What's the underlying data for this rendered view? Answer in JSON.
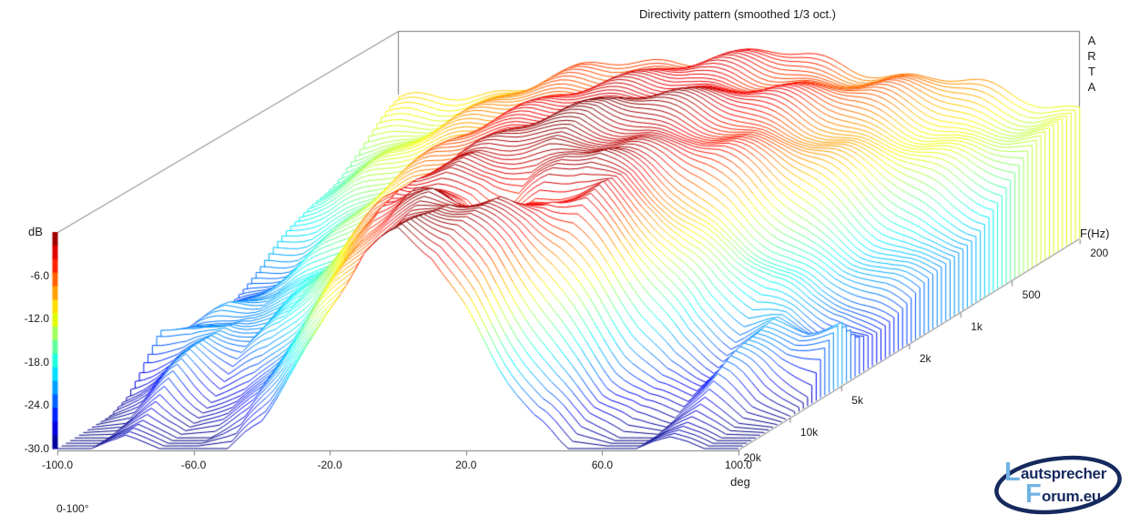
{
  "title": "Directivity pattern (smoothed 1/3 oct.)",
  "watermark_letters": [
    "A",
    "R",
    "T",
    "A"
  ],
  "colorbar": {
    "label": "dB",
    "ticks": [
      "-6.0",
      "-12.0",
      "-18.0",
      "-24.0",
      "-30.0"
    ],
    "tick_values": [
      -6,
      -12,
      -18,
      -24,
      -30
    ],
    "min_db": -30,
    "max_db": 0,
    "colormap": "jet",
    "band_colors_top_to_bottom": [
      "#9f0000",
      "#df0000",
      "#ff2000",
      "#ff6000",
      "#ff9f00",
      "#ffdf00",
      "#dfff00",
      "#9fff60",
      "#60ff9f",
      "#20ffdf",
      "#00dfff",
      "#009fff",
      "#0060ff",
      "#0020ff",
      "#0000df",
      "#00009f"
    ]
  },
  "x_axis": {
    "label": "deg",
    "ticks": [
      "-100.0",
      "-60.0",
      "-20.0",
      "20.0",
      "60.0",
      "100.0"
    ],
    "tick_values": [
      -100,
      -60,
      -20,
      20,
      60,
      100
    ],
    "range": [
      -100,
      100
    ]
  },
  "freq_axis": {
    "label": "F(Hz)",
    "ticks": [
      "200",
      "500",
      "1k",
      "2k",
      "5k",
      "10k",
      "20k"
    ],
    "tick_values": [
      200,
      500,
      1000,
      2000,
      5000,
      10000,
      20000
    ],
    "range": [
      200,
      20000
    ]
  },
  "footnote": "0-100°",
  "logo": {
    "initial1": "L",
    "rest1": "autsprecher",
    "initial2": "F",
    "rest2": "orum.eu",
    "color_dark": "#16295e",
    "color_light": "#71b3e3"
  },
  "axis_line_color": "#7a7a7a",
  "chart_data": {
    "type": "surface-waterfall",
    "title": "Directivity pattern (smoothed 1/3 oct.)",
    "xlabel": "deg",
    "ylabel": "F(Hz)",
    "zlabel": "dB",
    "angle_range_deg": [
      -100,
      100
    ],
    "freq_range_hz": [
      200,
      20000
    ],
    "db_range": [
      -30,
      0
    ],
    "angles_deg": [
      -100,
      -90,
      -80,
      -70,
      -60,
      -50,
      -40,
      -30,
      -20,
      -10,
      0,
      10,
      20,
      30,
      40,
      50,
      60,
      70,
      80,
      90,
      100
    ],
    "frequencies_hz": [
      200,
      250,
      315,
      400,
      500,
      630,
      800,
      1000,
      1250,
      1600,
      2000,
      2500,
      3150,
      4000,
      5000,
      6300,
      8000,
      10000,
      12500,
      16000,
      20000
    ],
    "values_db": [
      [
        -11.5,
        -11.0,
        -10.2,
        -9.2,
        -8.2,
        -7.3,
        -6.5,
        -5.8,
        -5.2,
        -4.7,
        -4.5,
        -4.7,
        -5.2,
        -5.8,
        -6.5,
        -7.3,
        -8.2,
        -9.2,
        -10.2,
        -11.0,
        -11.5
      ],
      [
        -12.5,
        -11.8,
        -10.8,
        -9.6,
        -8.4,
        -7.3,
        -6.4,
        -5.6,
        -4.9,
        -4.4,
        -4.2,
        -4.4,
        -4.9,
        -5.6,
        -6.4,
        -7.3,
        -8.4,
        -9.6,
        -10.8,
        -11.8,
        -12.5
      ],
      [
        -13.5,
        -12.6,
        -11.4,
        -10.0,
        -8.6,
        -7.3,
        -6.2,
        -5.3,
        -4.6,
        -4.0,
        -3.8,
        -4.0,
        -4.6,
        -5.3,
        -6.2,
        -7.3,
        -8.6,
        -10.0,
        -11.4,
        -12.6,
        -13.5
      ],
      [
        -14.5,
        -13.5,
        -12.0,
        -10.3,
        -8.6,
        -7.1,
        -5.9,
        -4.9,
        -4.1,
        -3.5,
        -3.2,
        -3.5,
        -4.1,
        -4.9,
        -5.9,
        -7.1,
        -8.6,
        -10.3,
        -12.0,
        -13.5,
        -14.5
      ],
      [
        -16.0,
        -14.6,
        -12.8,
        -10.7,
        -8.7,
        -7.0,
        -5.6,
        -4.5,
        -3.6,
        -2.9,
        -2.6,
        -2.9,
        -3.6,
        -4.5,
        -5.6,
        -7.0,
        -8.7,
        -10.7,
        -12.8,
        -14.6,
        -16.0
      ],
      [
        -17.5,
        -16.0,
        -13.8,
        -11.3,
        -9.0,
        -7.0,
        -5.4,
        -4.1,
        -3.1,
        -2.4,
        -2.0,
        -2.4,
        -3.1,
        -4.1,
        -5.4,
        -7.0,
        -9.0,
        -11.3,
        -13.8,
        -16.0,
        -17.5
      ],
      [
        -19.5,
        -17.8,
        -15.0,
        -12.0,
        -9.3,
        -7.0,
        -5.2,
        -3.7,
        -2.6,
        -1.8,
        -1.4,
        -1.8,
        -2.6,
        -3.7,
        -5.2,
        -7.0,
        -9.3,
        -12.0,
        -15.0,
        -17.8,
        -19.5
      ],
      [
        -21.0,
        -19.2,
        -16.2,
        -12.9,
        -9.8,
        -7.1,
        -5.0,
        -3.4,
        -2.2,
        -1.3,
        -0.8,
        -1.3,
        -2.2,
        -3.4,
        -5.0,
        -7.1,
        -9.8,
        -12.9,
        -16.2,
        -19.2,
        -21.0
      ],
      [
        -22.5,
        -20.6,
        -17.6,
        -14.0,
        -10.5,
        -7.5,
        -5.1,
        -3.3,
        -2.0,
        -1.0,
        -0.4,
        -1.0,
        -2.0,
        -3.3,
        -5.1,
        -7.5,
        -10.5,
        -14.0,
        -17.6,
        -20.6,
        -22.5
      ],
      [
        -23.5,
        -21.9,
        -19.0,
        -15.3,
        -11.5,
        -8.1,
        -5.4,
        -3.4,
        -1.9,
        -0.8,
        0.0,
        -0.8,
        -1.9,
        -3.4,
        -5.4,
        -8.1,
        -11.5,
        -15.3,
        -19.0,
        -21.9,
        -23.5
      ],
      [
        -24.5,
        -22.8,
        -20.4,
        -17.0,
        -13.0,
        -9.2,
        -6.1,
        -3.7,
        -2.0,
        -0.6,
        0.3,
        -0.6,
        -2.0,
        -3.7,
        -6.1,
        -9.2,
        -13.0,
        -17.0,
        -20.4,
        -22.8,
        -24.5
      ],
      [
        -25.0,
        -23.6,
        -21.8,
        -18.9,
        -14.9,
        -10.8,
        -7.2,
        -4.4,
        -2.4,
        -0.9,
        0.0,
        -0.9,
        -2.4,
        -4.4,
        -7.2,
        -10.8,
        -14.9,
        -18.9,
        -21.8,
        -23.6,
        -25.0
      ],
      [
        -25.5,
        -22.5,
        -21.5,
        -19.0,
        -15.5,
        -11.0,
        -7.0,
        -3.5,
        -1.0,
        -1.5,
        -3.0,
        -1.5,
        -1.0,
        -3.5,
        -7.0,
        -11.0,
        -15.5,
        -19.0,
        -21.5,
        -22.5,
        -25.5
      ],
      [
        -25.0,
        -23.5,
        -21.0,
        -20.5,
        -17.0,
        -12.5,
        -6.5,
        -2.0,
        -1.0,
        -2.5,
        -6.0,
        -2.5,
        -1.0,
        -2.0,
        -6.5,
        -12.5,
        -17.0,
        -20.5,
        -21.0,
        -23.5,
        -25.0
      ],
      [
        -22.0,
        -22.0,
        -20.5,
        -22.5,
        -19.5,
        -14.0,
        -8.0,
        -1.5,
        -3.0,
        -5.0,
        -10.0,
        -5.0,
        -3.0,
        -1.5,
        -8.0,
        -14.0,
        -19.5,
        -22.5,
        -20.5,
        -22.0,
        -22.0
      ],
      [
        -24.5,
        -24.0,
        -21.5,
        -24.0,
        -21.0,
        -15.5,
        -9.5,
        -3.0,
        -1.8,
        -3.5,
        -6.0,
        -3.5,
        -1.8,
        -3.0,
        -9.5,
        -15.5,
        -21.0,
        -24.0,
        -21.5,
        -24.0,
        -24.5
      ],
      [
        -29.0,
        -26.0,
        -22.5,
        -26.0,
        -23.5,
        -18.5,
        -12.5,
        -7.0,
        -3.0,
        -0.5,
        -1.0,
        -0.5,
        -3.0,
        -7.0,
        -12.5,
        -18.5,
        -23.5,
        -26.0,
        -22.5,
        -26.0,
        -29.0
      ],
      [
        -30.0,
        -28.0,
        -24.0,
        -28.0,
        -26.0,
        -21.5,
        -15.5,
        -9.5,
        -4.5,
        -0.8,
        0.8,
        -0.8,
        -4.5,
        -9.5,
        -15.5,
        -21.5,
        -26.0,
        -28.0,
        -24.0,
        -28.0,
        -30.0
      ],
      [
        -30.0,
        -29.5,
        -26.0,
        -29.5,
        -28.0,
        -24.5,
        -18.5,
        -12.0,
        -6.0,
        -1.5,
        0.5,
        -1.5,
        -6.0,
        -12.0,
        -18.5,
        -24.5,
        -28.0,
        -29.5,
        -26.0,
        -29.5,
        -30.0
      ],
      [
        -30.0,
        -30.0,
        -27.5,
        -30.0,
        -30.0,
        -27.5,
        -22.0,
        -15.0,
        -8.0,
        -2.5,
        0.0,
        -2.5,
        -8.0,
        -15.0,
        -22.0,
        -27.5,
        -30.0,
        -30.0,
        -27.5,
        -30.0,
        -30.0
      ],
      [
        -30.0,
        -30.0,
        -28.0,
        -30.0,
        -30.0,
        -30.0,
        -25.5,
        -18.0,
        -10.0,
        -3.5,
        -0.5,
        -3.5,
        -10.0,
        -18.0,
        -25.5,
        -30.0,
        -30.0,
        -30.0,
        -28.0,
        -30.0,
        -30.0
      ]
    ]
  }
}
